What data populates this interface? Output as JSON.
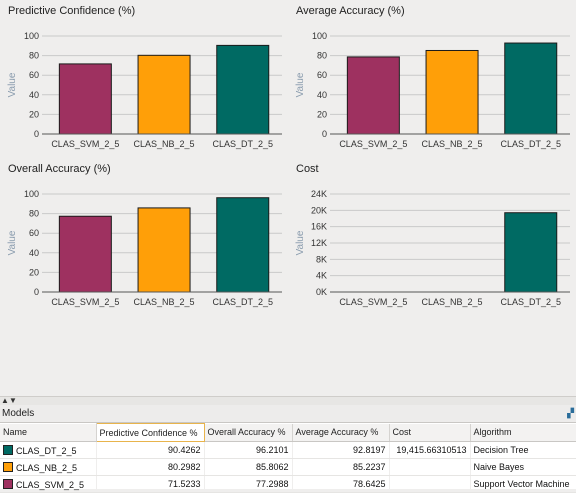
{
  "chart_data": [
    {
      "type": "bar",
      "title": "Predictive Confidence (%)",
      "ylabel": "Value",
      "categories": [
        "CLAS_SVM_2_5",
        "CLAS_NB_2_5",
        "CLAS_DT_2_5"
      ],
      "values": [
        71.5233,
        80.2982,
        90.4262
      ],
      "ylim": [
        0,
        100
      ],
      "yticks": [
        0,
        20,
        40,
        60,
        80,
        100
      ],
      "ytick_labels": [
        "0",
        "20",
        "40",
        "60",
        "80",
        "100"
      ],
      "colors": [
        "#9e3160",
        "#ff9f08",
        "#006a63"
      ]
    },
    {
      "type": "bar",
      "title": "Average Accuracy (%)",
      "ylabel": "Value",
      "categories": [
        "CLAS_SVM_2_5",
        "CLAS_NB_2_5",
        "CLAS_DT_2_5"
      ],
      "values": [
        78.6425,
        85.2237,
        92.8197
      ],
      "ylim": [
        0,
        100
      ],
      "yticks": [
        0,
        20,
        40,
        60,
        80,
        100
      ],
      "ytick_labels": [
        "0",
        "20",
        "40",
        "60",
        "80",
        "100"
      ],
      "colors": [
        "#9e3160",
        "#ff9f08",
        "#006a63"
      ]
    },
    {
      "type": "bar",
      "title": "Overall Accuracy (%)",
      "ylabel": "Value",
      "categories": [
        "CLAS_SVM_2_5",
        "CLAS_NB_2_5",
        "CLAS_DT_2_5"
      ],
      "values": [
        77.2988,
        85.8062,
        96.2101
      ],
      "ylim": [
        0,
        100
      ],
      "yticks": [
        0,
        20,
        40,
        60,
        80,
        100
      ],
      "ytick_labels": [
        "0",
        "20",
        "40",
        "60",
        "80",
        "100"
      ],
      "colors": [
        "#9e3160",
        "#ff9f08",
        "#006a63"
      ]
    },
    {
      "type": "bar",
      "title": "Cost",
      "ylabel": "Value",
      "categories": [
        "CLAS_SVM_2_5",
        "CLAS_NB_2_5",
        "CLAS_DT_2_5"
      ],
      "values": [
        0,
        0,
        19415.66310513
      ],
      "ylim": [
        0,
        24000
      ],
      "yticks": [
        0,
        4000,
        8000,
        12000,
        16000,
        20000,
        24000
      ],
      "ytick_labels": [
        "0K",
        "4K",
        "8K",
        "12K",
        "16K",
        "20K",
        "24K"
      ],
      "colors": [
        "#9e3160",
        "#ff9f08",
        "#006a63"
      ]
    }
  ],
  "models": {
    "header": "Models",
    "columns": [
      "Name",
      "Predictive Confidence %",
      "Overall Accuracy %",
      "Average Accuracy %",
      "Cost",
      "Algorithm"
    ],
    "rows": [
      {
        "name": "CLAS_DT_2_5",
        "color": "#006a63",
        "predictive_confidence": "90.4262",
        "overall_accuracy": "96.2101",
        "average_accuracy": "92.8197",
        "cost": "19,415.66310513",
        "algorithm": "Decision Tree"
      },
      {
        "name": "CLAS_NB_2_5",
        "color": "#ff9f08",
        "predictive_confidence": "80.2982",
        "overall_accuracy": "85.8062",
        "average_accuracy": "85.2237",
        "cost": "",
        "algorithm": "Naive Bayes"
      },
      {
        "name": "CLAS_SVM_2_5",
        "color": "#9e3160",
        "predictive_confidence": "71.5233",
        "overall_accuracy": "77.2988",
        "average_accuracy": "78.6425",
        "cost": "",
        "algorithm": "Support Vector Machine"
      }
    ]
  }
}
